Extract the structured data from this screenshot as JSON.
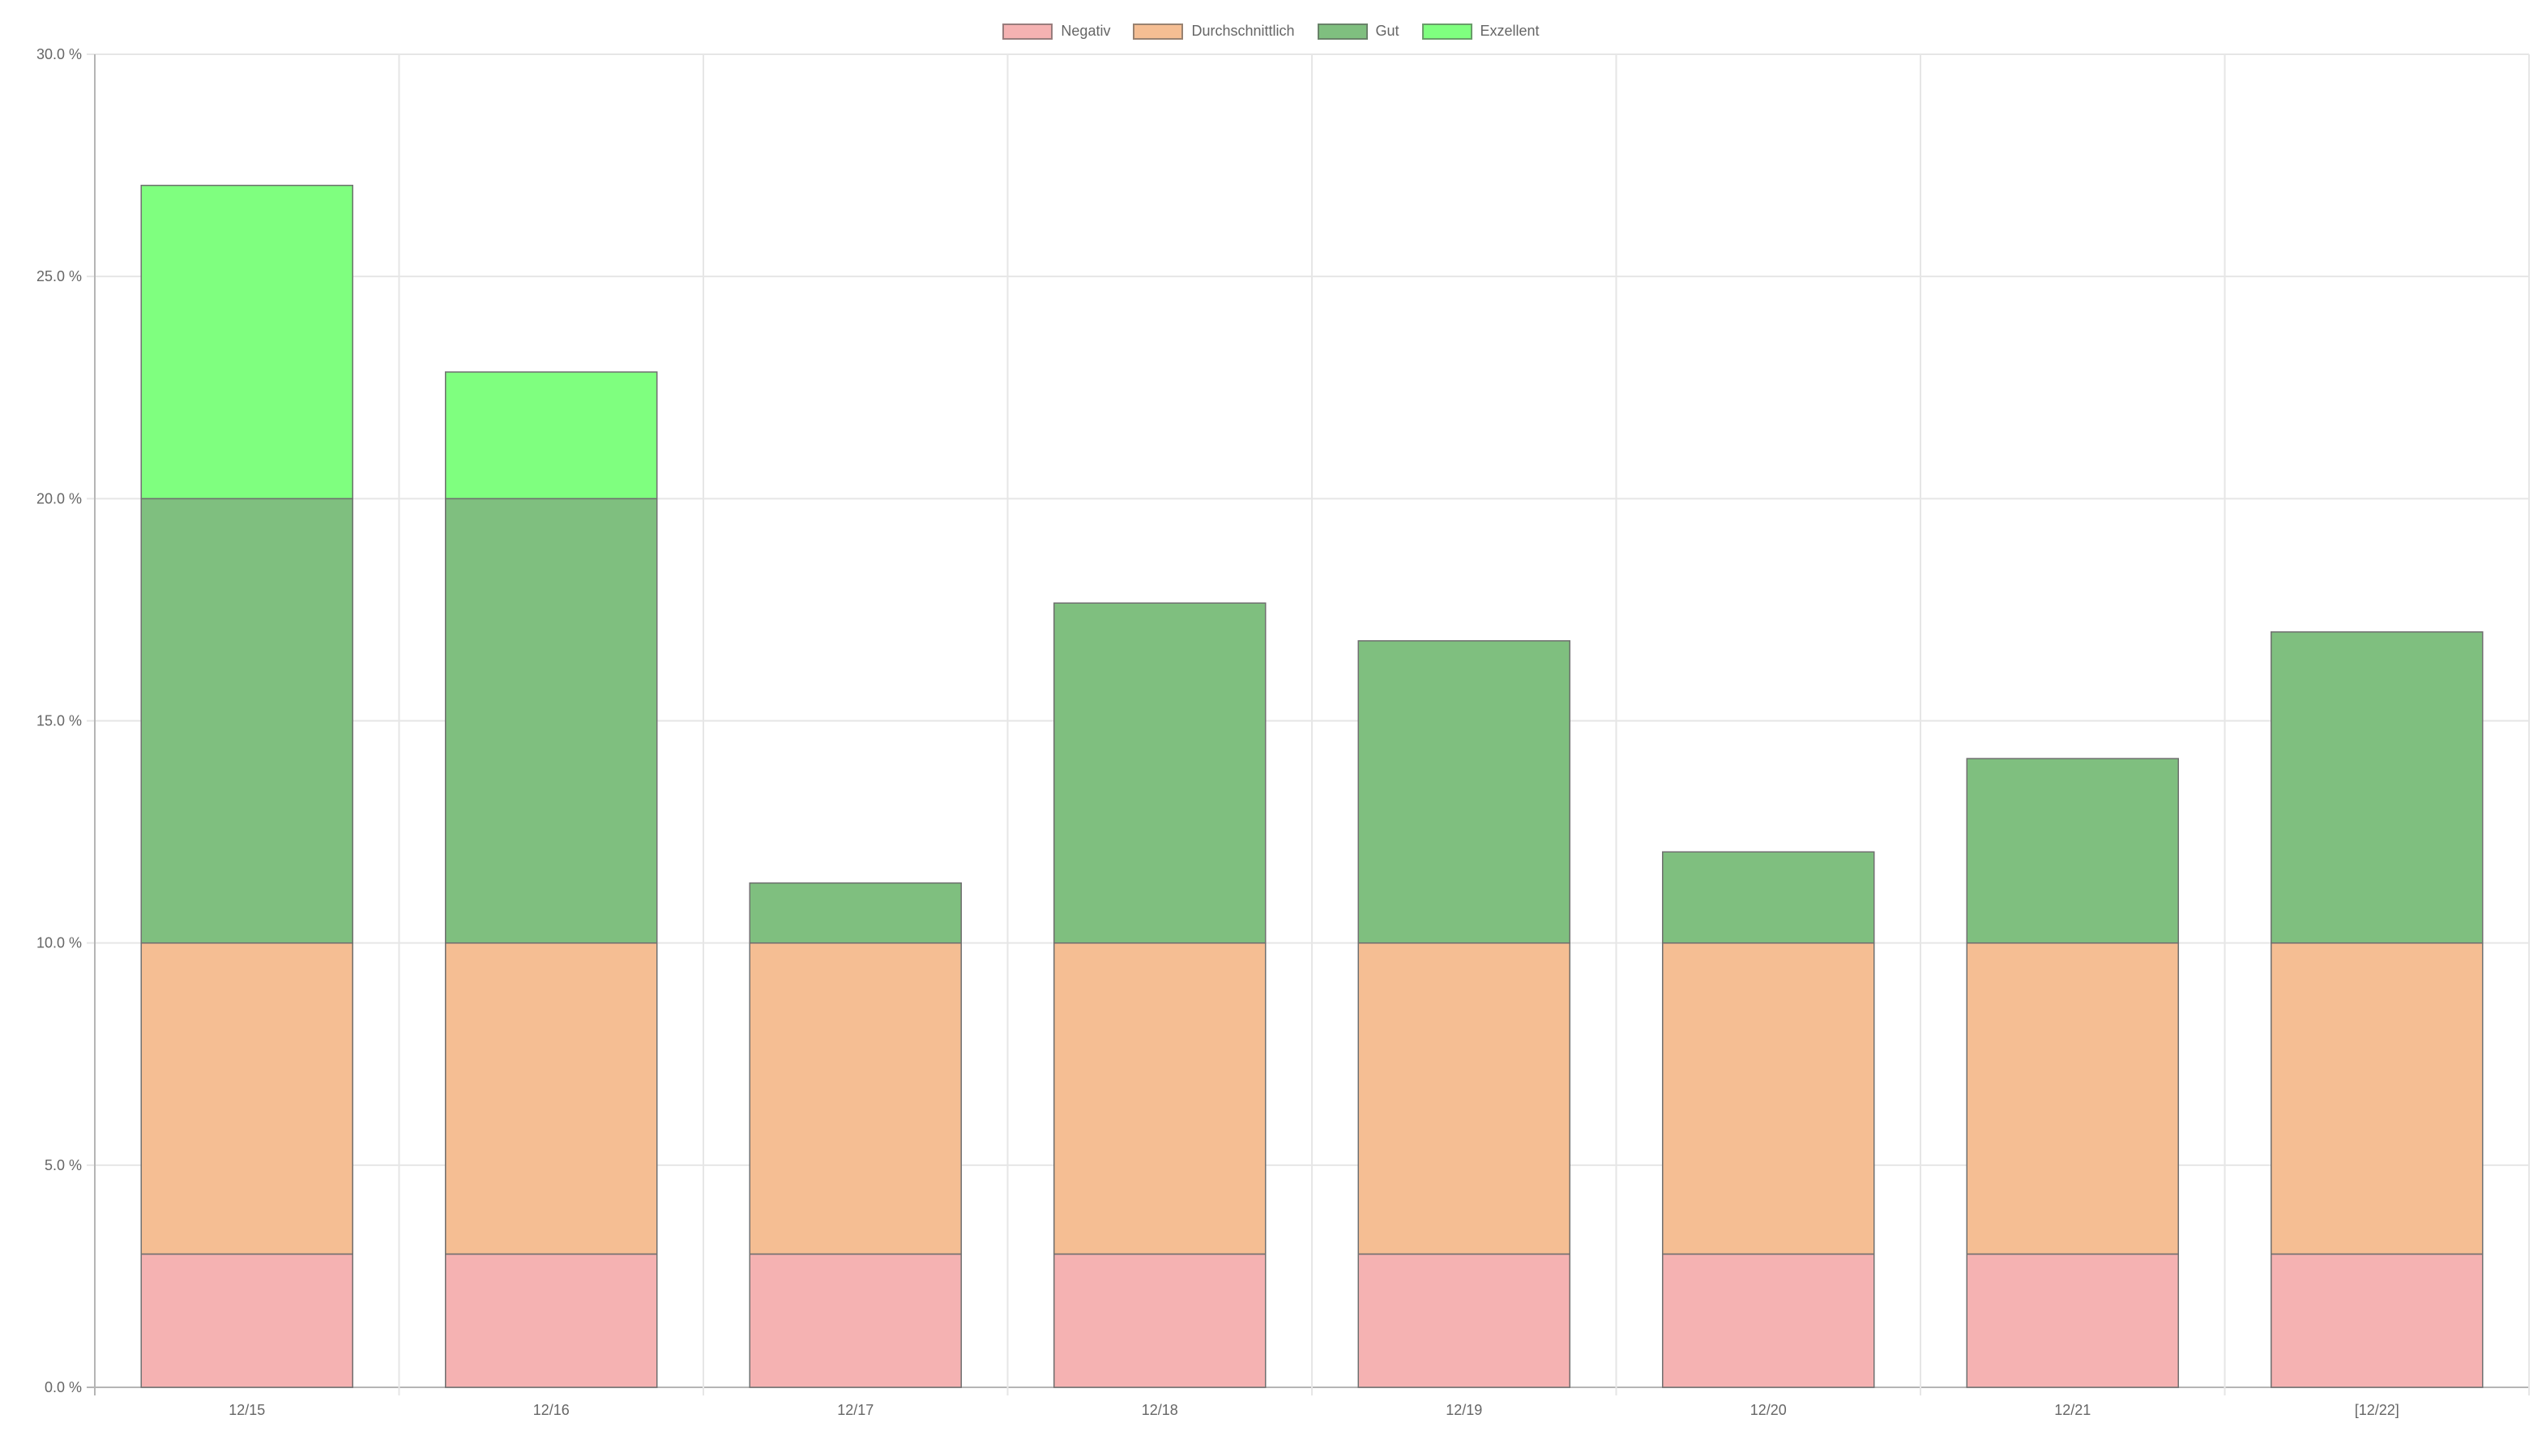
{
  "chart_data": {
    "type": "bar",
    "stacked": true,
    "categories": [
      "12/15",
      "12/16",
      "12/17",
      "12/18",
      "12/19",
      "12/20",
      "12/21",
      "[12/22]"
    ],
    "series": [
      {
        "name": "Negativ",
        "color": "#f5b2b2",
        "values": [
          3,
          3,
          3,
          3,
          3,
          3,
          3,
          3
        ]
      },
      {
        "name": "Durchschnittlich",
        "color": "#f5be93",
        "values": [
          7,
          7,
          7,
          7,
          7,
          7,
          7,
          7
        ]
      },
      {
        "name": "Gut",
        "color": "#7fbf7f",
        "values": [
          10,
          10,
          1.35,
          7.65,
          6.8,
          2.05,
          4.15,
          7.0
        ]
      },
      {
        "name": "Exzellent",
        "color": "#7fff7f",
        "values": [
          7.05,
          2.85,
          0,
          0,
          0,
          0,
          0,
          0
        ]
      }
    ],
    "ylim": [
      0,
      30
    ],
    "yticks": [
      0,
      5,
      10,
      15,
      20,
      25,
      30
    ],
    "ytick_labels": [
      "0.0 %",
      "5.0 %",
      "10.0 %",
      "15.0 %",
      "20.0 %",
      "25.0 %",
      "30.0 %"
    ],
    "grid": true,
    "legend_position": "top-center"
  }
}
